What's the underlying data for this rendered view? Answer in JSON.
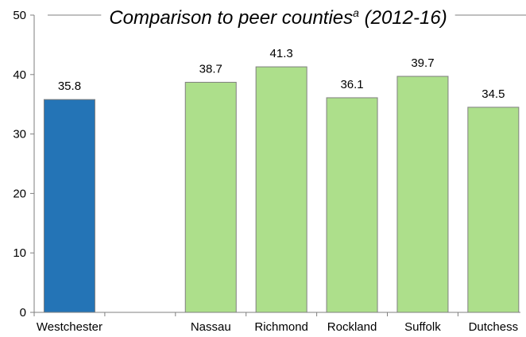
{
  "chart_data": {
    "type": "bar",
    "title": "Comparison to peer counties",
    "title_superscript": "a",
    "title_suffix": " (2012-16)",
    "xlabel": "",
    "ylabel": "",
    "ylim": [
      0,
      50
    ],
    "yticks": [
      0,
      10,
      20,
      30,
      40,
      50
    ],
    "grid": false,
    "legend": "none",
    "categories": [
      "Westchester",
      "",
      "Nassau",
      "Richmond",
      "Rockland",
      "Suffolk",
      "Dutchess"
    ],
    "values": [
      35.8,
      null,
      38.7,
      41.3,
      36.1,
      39.7,
      34.5
    ],
    "data_labels": [
      "35.8",
      "",
      "38.7",
      "41.3",
      "36.1",
      "39.7",
      "34.5"
    ],
    "bar_colors": [
      "#2474b6",
      null,
      "#addf8b",
      "#addf8b",
      "#addf8b",
      "#addf8b",
      "#addf8b"
    ],
    "bar_outline_color": "#7f7f7f",
    "axis_color": "#7f7f7f"
  }
}
